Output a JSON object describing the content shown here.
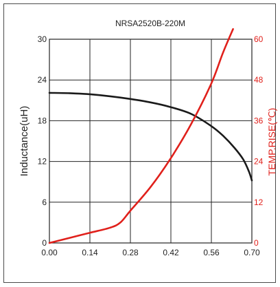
{
  "chart_data": {
    "type": "line",
    "title": "NRSA2520B-220M",
    "ylabel": "Inductance(uH)",
    "y2label": "TEMP.RISE(℃)",
    "x_ticks": [
      "0.00",
      "0.14",
      "0.28",
      "0.42",
      "0.56",
      "0.70"
    ],
    "y_ticks": [
      "0",
      "6",
      "12",
      "18",
      "24",
      "30"
    ],
    "y2_ticks": [
      "0",
      "12",
      "24",
      "36",
      "48",
      "60"
    ],
    "xlim": [
      0,
      0.7
    ],
    "ylim": [
      0,
      30
    ],
    "y2lim": [
      0,
      60
    ],
    "grid": true,
    "colors": {
      "inductance": "#1a1a1a",
      "temp_rise": "#e0201b",
      "right_axis": "#e0201b"
    },
    "series": [
      {
        "axis": "left",
        "x": [
          0.0,
          0.07,
          0.14,
          0.21,
          0.28,
          0.35,
          0.42,
          0.49,
          0.56,
          0.6,
          0.64,
          0.67,
          0.69,
          0.7
        ],
        "values": [
          22.1,
          22.05,
          21.9,
          21.6,
          21.2,
          20.7,
          20.0,
          19.0,
          17.2,
          15.8,
          14.0,
          12.3,
          10.5,
          9.2
        ]
      },
      {
        "axis": "right",
        "x": [
          0.0,
          0.07,
          0.14,
          0.21,
          0.245,
          0.28,
          0.35,
          0.42,
          0.49,
          0.56,
          0.6,
          0.635
        ],
        "values": [
          0,
          1.5,
          3.0,
          4.5,
          6.0,
          9.5,
          16.5,
          25.0,
          35.0,
          47.0,
          56.0,
          63.0
        ]
      }
    ]
  }
}
